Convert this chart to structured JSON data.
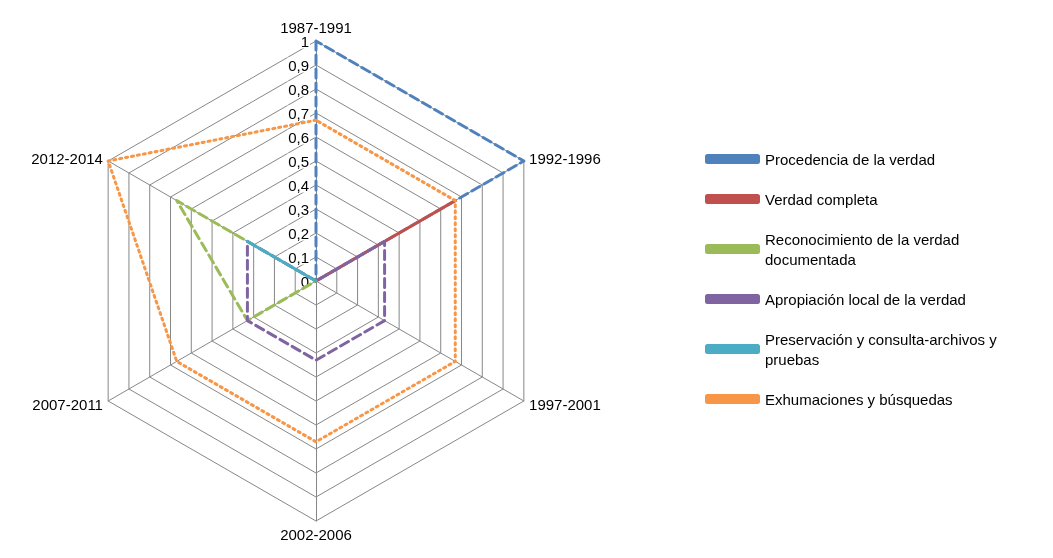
{
  "chart_data": {
    "type": "radar",
    "categories": [
      "1987-1991",
      "1992-1996",
      "1997-2001",
      "2002-2006",
      "2007-2011",
      "2012-2014"
    ],
    "ylim": [
      0,
      1
    ],
    "yticks": [
      0,
      {
        "value": 0.1,
        "label": "0,1"
      },
      {
        "value": 0.2,
        "label": "0,2"
      },
      {
        "value": 0.3,
        "label": "0,3"
      },
      {
        "value": 0.4,
        "label": "0,4"
      },
      {
        "value": 0.5,
        "label": "0,5"
      },
      {
        "value": 0.6,
        "label": "0,6"
      },
      {
        "value": 0.7,
        "label": "0,7"
      },
      {
        "value": 0.8,
        "label": "0,8"
      },
      {
        "value": 0.9,
        "label": "0,9"
      },
      1
    ],
    "grid": true,
    "legend": "right",
    "marker": "none",
    "series": [
      {
        "name": "Procedencia de la verdad",
        "color": "#4f81bd",
        "line_style": "dashed",
        "values": [
          1,
          1,
          null,
          null,
          null,
          null
        ]
      },
      {
        "name": "Verdad completa",
        "color": "#c0504d",
        "line_style": "solid",
        "values": [
          0,
          0.67,
          null,
          null,
          null,
          null
        ]
      },
      {
        "name": "Reconocimiento de la verdad documentada",
        "color": "#9bbb59",
        "line_style": "dashed",
        "values": [
          null,
          null,
          null,
          0,
          0.33,
          0.67
        ]
      },
      {
        "name": "Apropiación local de la verdad",
        "color": "#8064a2",
        "line_style": "dashed",
        "values": [
          0,
          0.33,
          0.33,
          0.33,
          0.33,
          0.33
        ]
      },
      {
        "name": "Preservación y consulta-archivos y pruebas",
        "color": "#4bacc6",
        "line_style": "solid",
        "values": [
          0,
          null,
          null,
          null,
          null,
          0.33
        ]
      },
      {
        "name": "Exhumaciones y búsquedas",
        "color": "#f79646",
        "line_style": "dotted",
        "values": [
          0.67,
          0.67,
          0.67,
          0.67,
          0.67,
          1
        ]
      }
    ]
  }
}
